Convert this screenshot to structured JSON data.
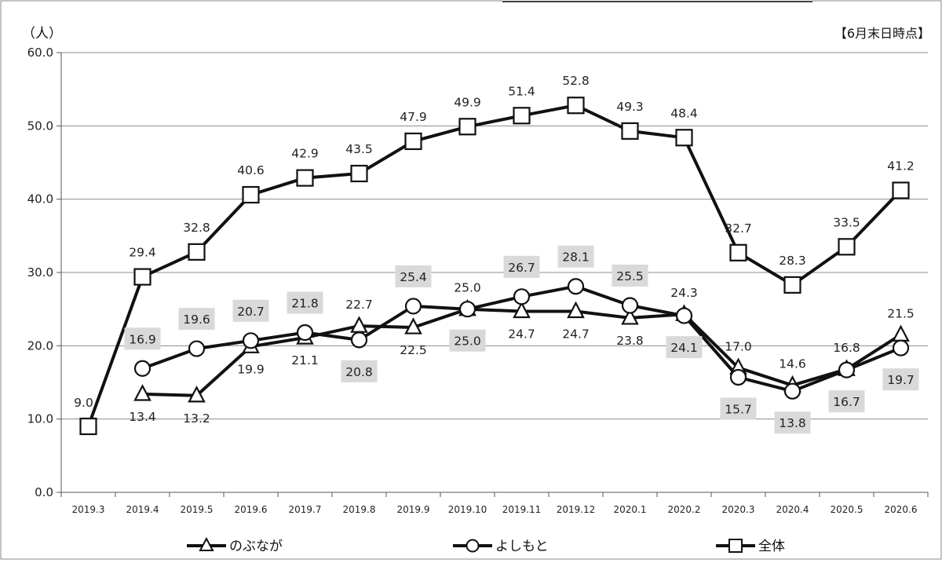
{
  "chart_data": {
    "type": "line",
    "unit_label": "（人）",
    "note": "【6月末日時点】",
    "categories": [
      "2019.3",
      "2019.4",
      "2019.5",
      "2019.6",
      "2019.7",
      "2019.8",
      "2019.9",
      "2019.10",
      "2019.11",
      "2019.12",
      "2020.1",
      "2020.2",
      "2020.3",
      "2020.4",
      "2020.5",
      "2020.6"
    ],
    "ylim": [
      0,
      60
    ],
    "yticks": [
      "0.0",
      "10.0",
      "20.0",
      "30.0",
      "40.0",
      "50.0",
      "60.0"
    ],
    "grid": true,
    "legend_position": "bottom",
    "series": [
      {
        "name": "のぶなが",
        "marker": "triangle",
        "values": [
          null,
          13.4,
          13.2,
          19.9,
          21.1,
          22.7,
          22.5,
          25.0,
          24.7,
          24.7,
          23.8,
          24.3,
          17.0,
          14.6,
          16.8,
          21.5
        ],
        "labels": [
          null,
          "13.4",
          "13.2",
          "19.9",
          "21.1",
          "22.7",
          "22.5",
          "25.0",
          "24.7",
          "24.7",
          "23.8",
          "24.3",
          "17.0",
          "14.6",
          "16.8",
          "21.5"
        ]
      },
      {
        "name": "よしもと",
        "marker": "circle",
        "values": [
          null,
          16.9,
          19.6,
          20.7,
          21.8,
          20.8,
          25.4,
          25.0,
          26.7,
          28.1,
          25.5,
          24.1,
          15.7,
          13.8,
          16.7,
          19.7
        ],
        "labels": [
          null,
          "16.9",
          "19.6",
          "20.7",
          "21.8",
          "20.8",
          "25.4",
          "25.0",
          "26.7",
          "28.1",
          "25.5",
          "24.1",
          "15.7",
          "13.8",
          "16.7",
          "19.7"
        ]
      },
      {
        "name": "全体",
        "marker": "square",
        "values": [
          9.0,
          29.4,
          32.8,
          40.6,
          42.9,
          43.5,
          47.9,
          49.9,
          51.4,
          52.8,
          49.3,
          48.4,
          32.7,
          28.3,
          33.5,
          41.2
        ],
        "labels": [
          "9.0",
          "29.4",
          "32.8",
          "40.6",
          "42.9",
          "43.5",
          "47.9",
          "49.9",
          "51.4",
          "52.8",
          "49.3",
          "48.4",
          "32.7",
          "28.3",
          "33.5",
          "41.2"
        ]
      }
    ],
    "colors": {
      "line": "#111111",
      "grid": "#8c8c8c",
      "label_box": "#d9d9d9",
      "frame": "#888888"
    }
  }
}
